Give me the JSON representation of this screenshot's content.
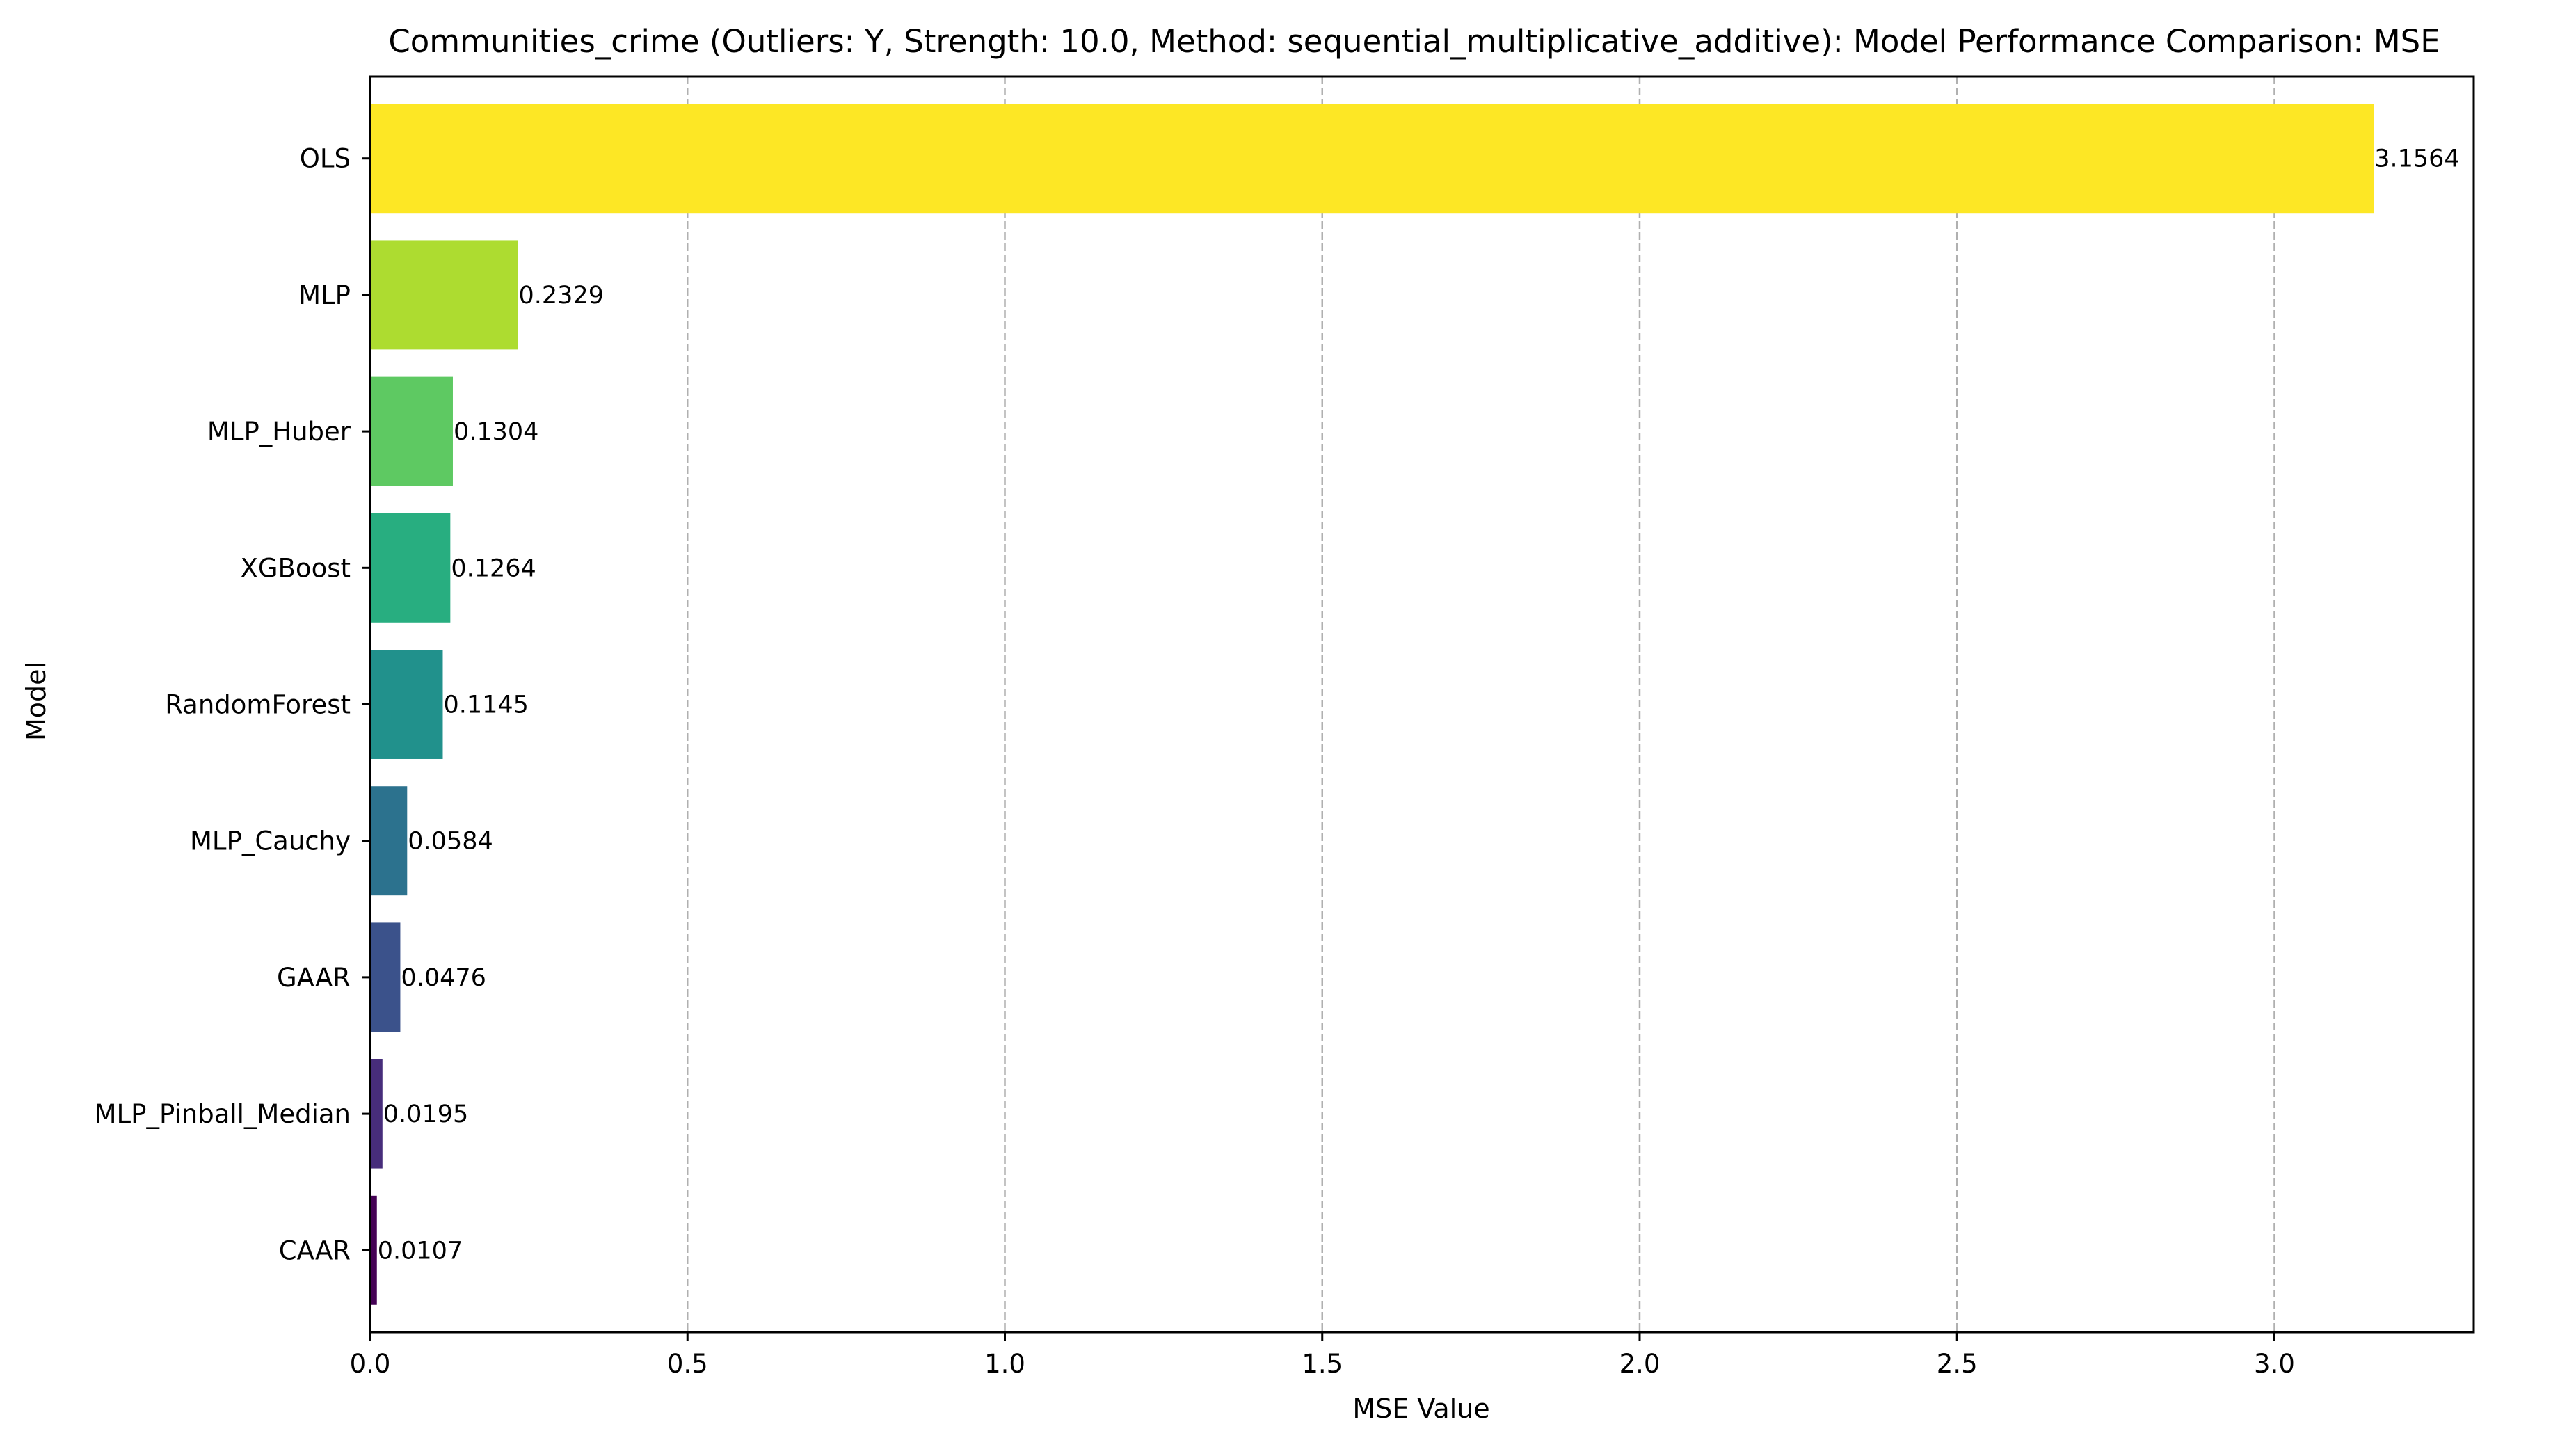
{
  "chart_data": {
    "type": "bar",
    "orientation": "horizontal",
    "title": "Communities_crime (Outliers: Y, Strength: 10.0, Method: sequential_multiplicative_additive): Model Performance Comparison: MSE",
    "xlabel": "MSE Value",
    "ylabel": "Model",
    "xlim": [
      0,
      3.314
    ],
    "xticks": [
      "0.0",
      "0.5",
      "1.0",
      "1.5",
      "2.0",
      "2.5",
      "3.0"
    ],
    "grid": "x-dashed",
    "bars": [
      {
        "label": "OLS",
        "value": 3.1564,
        "value_label": "3.1564",
        "color": "#fde725"
      },
      {
        "label": "MLP",
        "value": 0.2329,
        "value_label": "0.2329",
        "color": "#addc30"
      },
      {
        "label": "MLP_Huber",
        "value": 0.1304,
        "value_label": "0.1304",
        "color": "#5ec962"
      },
      {
        "label": "XGBoost",
        "value": 0.1264,
        "value_label": "0.1264",
        "color": "#28ae80"
      },
      {
        "label": "RandomForest",
        "value": 0.1145,
        "value_label": "0.1145",
        "color": "#21918c"
      },
      {
        "label": "MLP_Cauchy",
        "value": 0.0584,
        "value_label": "0.0584",
        "color": "#2c728e"
      },
      {
        "label": "GAAR",
        "value": 0.0476,
        "value_label": "0.0476",
        "color": "#3b528b"
      },
      {
        "label": "MLP_Pinball_Median",
        "value": 0.0195,
        "value_label": "0.0195",
        "color": "#472d7b"
      },
      {
        "label": "CAAR",
        "value": 0.0107,
        "value_label": "0.0107",
        "color": "#440154"
      }
    ]
  }
}
